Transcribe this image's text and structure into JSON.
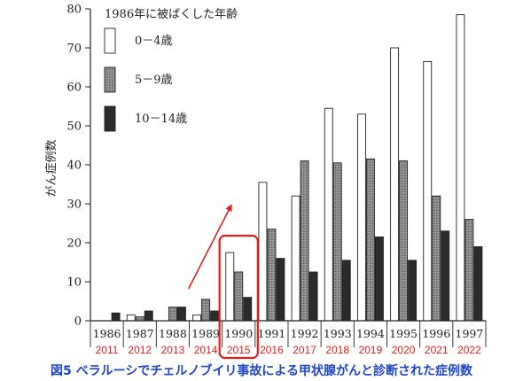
{
  "caption": "図5 ベラルーシでチェルノブイリ事故による甲状腺がんと診断された症例数",
  "chart_data": {
    "type": "bar",
    "ylabel": "がん症例数",
    "ylim": [
      0,
      80
    ],
    "yticks": [
      0,
      10,
      20,
      30,
      40,
      50,
      60,
      70,
      80
    ],
    "legend_title": "1986年に被ばくした年齢",
    "categories": [
      "1986",
      "1987",
      "1988",
      "1989",
      "1990",
      "1991",
      "1992",
      "1993",
      "1994",
      "1995",
      "1996",
      "1997"
    ],
    "secondary_labels": [
      "2011",
      "2012",
      "2013",
      "2014",
      "2015",
      "2016",
      "2017",
      "2018",
      "2019",
      "2020",
      "2021",
      "2022"
    ],
    "series": [
      {
        "name": "0－4歳",
        "values": [
          0,
          1.5,
          0,
          1.5,
          17.5,
          35.5,
          32,
          54.5,
          53,
          70,
          66.5,
          78.5
        ]
      },
      {
        "name": "5－9歳",
        "values": [
          0,
          1,
          3.5,
          5.5,
          12.5,
          23.5,
          41,
          40.5,
          41.5,
          41,
          32,
          26
        ]
      },
      {
        "name": "10－14歳",
        "values": [
          2,
          2.5,
          3.5,
          2.5,
          6,
          16,
          12.5,
          15.5,
          21.5,
          15.5,
          23,
          19
        ]
      }
    ],
    "highlight_category": "1990",
    "colors": {
      "series0": "#ffffff",
      "series1": "#808080",
      "series2": "#2b2b2b",
      "highlight": "#e0201c",
      "secondary_label": "#e0201c"
    }
  }
}
